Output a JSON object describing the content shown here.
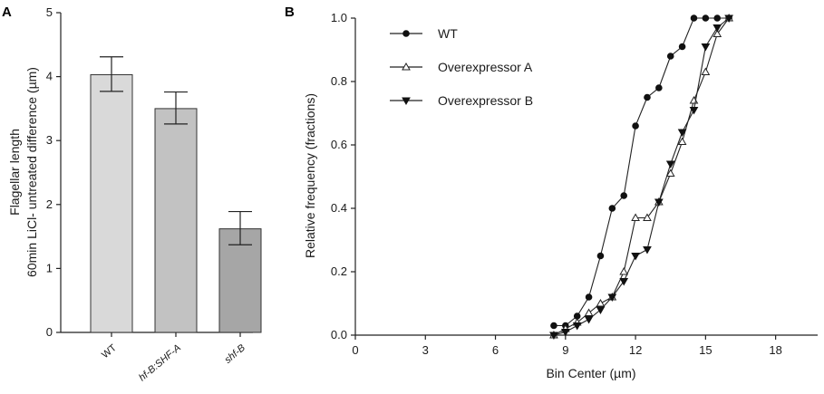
{
  "chart_data": [
    {
      "panel": "A",
      "type": "bar",
      "categories": [
        "WT",
        "hf-B:SHF-A",
        "shf-B"
      ],
      "values": [
        4.03,
        3.5,
        1.62
      ],
      "error_low": [
        3.77,
        3.26,
        1.37
      ],
      "error_high": [
        4.31,
        3.76,
        1.89
      ],
      "bar_colors": [
        "#d9d9d9",
        "#c2c2c2",
        "#a6a6a6"
      ],
      "ylabel_line1": "Flagellar length",
      "ylabel_line2": "60min LiCl- untreated difference (µm)",
      "ylim": [
        0,
        5
      ],
      "yticks": [
        "0",
        "1",
        "2",
        "3",
        "4",
        "5"
      ]
    },
    {
      "panel": "B",
      "type": "line",
      "xlabel": "Bin Center (µm)",
      "ylabel": "Relative frequency (fractions)",
      "xlim": [
        0,
        19.8
      ],
      "ylim": [
        0,
        1.0
      ],
      "xticks": [
        "0",
        "3",
        "6",
        "9",
        "12",
        "15",
        "18"
      ],
      "yticks": [
        "0.0",
        "0.2",
        "0.4",
        "0.6",
        "0.8",
        "1.0"
      ],
      "legend_position": "top-left",
      "series": [
        {
          "name": "WT",
          "marker": "circle",
          "x": [
            8.5,
            9.0,
            9.5,
            10.0,
            10.5,
            11.0,
            11.5,
            12.0,
            12.5,
            13.0,
            13.5,
            14.0,
            14.5,
            15.0,
            15.5,
            16.0
          ],
          "y": [
            0.03,
            0.03,
            0.06,
            0.12,
            0.25,
            0.4,
            0.44,
            0.66,
            0.75,
            0.78,
            0.88,
            0.91,
            1.0,
            1.0,
            1.0,
            1.0
          ]
        },
        {
          "name": "Overexpressor A",
          "marker": "triangle-up-open",
          "x": [
            8.5,
            9.0,
            9.5,
            10.0,
            10.5,
            11.0,
            11.5,
            12.0,
            12.5,
            13.0,
            13.5,
            14.0,
            14.5,
            15.0,
            15.5,
            16.0
          ],
          "y": [
            0.0,
            0.02,
            0.04,
            0.07,
            0.1,
            0.12,
            0.2,
            0.37,
            0.37,
            0.42,
            0.51,
            0.61,
            0.74,
            0.83,
            0.95,
            1.0
          ]
        },
        {
          "name": "Overexpressor B",
          "marker": "triangle-down",
          "x": [
            8.5,
            9.0,
            9.5,
            10.0,
            10.5,
            11.0,
            11.5,
            12.0,
            12.5,
            13.0,
            13.5,
            14.0,
            14.5,
            15.0,
            15.5,
            16.0
          ],
          "y": [
            0.0,
            0.01,
            0.03,
            0.05,
            0.08,
            0.12,
            0.17,
            0.25,
            0.27,
            0.42,
            0.54,
            0.64,
            0.71,
            0.91,
            0.97,
            1.0
          ]
        }
      ]
    }
  ]
}
